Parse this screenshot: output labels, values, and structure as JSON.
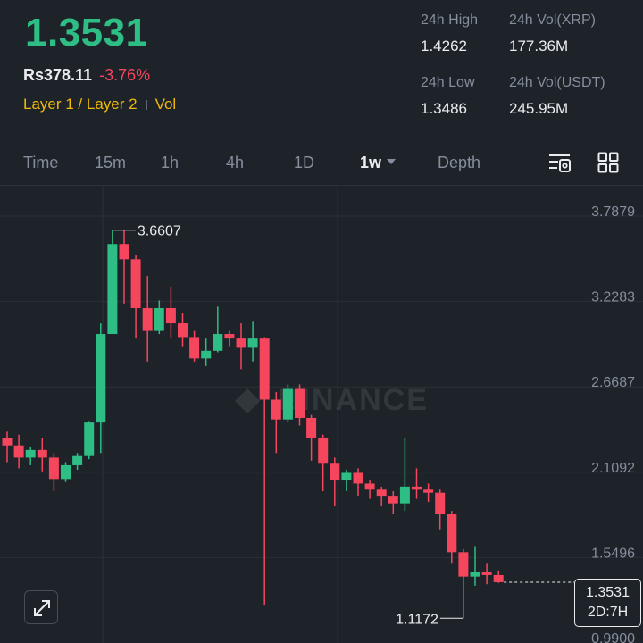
{
  "ticker": {
    "last_price": "1.3531",
    "fiat_price": "Rs378.11",
    "change_pct": "-3.76%",
    "tag_layer": "Layer 1 / Layer 2",
    "tag_vol": "Vol"
  },
  "stats": {
    "high_label": "24h High",
    "high_value": "1.4262",
    "low_label": "24h Low",
    "low_value": "1.3486",
    "vol_base_label": "24h Vol(XRP)",
    "vol_base_value": "177.36M",
    "vol_quote_label": "24h Vol(USDT)",
    "vol_quote_value": "245.95M"
  },
  "timeframes": {
    "time": "Time",
    "m15": "15m",
    "h1": "1h",
    "h4": "4h",
    "d1": "1D",
    "w1": "1w",
    "depth": "Depth"
  },
  "chart": {
    "watermark": "BINANCE",
    "price_axis": [
      "3.7879",
      "3.2283",
      "2.6687",
      "2.1092",
      "1.5496",
      "0.9900"
    ],
    "high_marker": "3.6607",
    "low_marker": "1.1172",
    "current_price": "1.3531",
    "countdown": "2D:7H",
    "colors": {
      "up": "#2ebd85",
      "down": "#f6465d"
    },
    "candles": [
      [
        2.3,
        2.25,
        2.34,
        2.14
      ],
      [
        2.25,
        2.17,
        2.32,
        2.1
      ],
      [
        2.17,
        2.22,
        2.24,
        2.12
      ],
      [
        2.22,
        2.17,
        2.3,
        2.08
      ],
      [
        2.17,
        2.03,
        2.2,
        1.95
      ],
      [
        2.03,
        2.12,
        2.14,
        2.01
      ],
      [
        2.12,
        2.18,
        2.2,
        2.09
      ],
      [
        2.18,
        2.4,
        2.41,
        2.16
      ],
      [
        2.4,
        2.98,
        3.05,
        2.2
      ],
      [
        2.98,
        3.57,
        3.66,
        2.98
      ],
      [
        3.57,
        3.47,
        3.66,
        3.18
      ],
      [
        3.47,
        3.15,
        3.5,
        2.95
      ],
      [
        3.15,
        3.0,
        3.36,
        2.8
      ],
      [
        3.0,
        3.15,
        3.2,
        2.98
      ],
      [
        3.15,
        3.05,
        3.29,
        2.95
      ],
      [
        3.05,
        2.96,
        3.12,
        2.9
      ],
      [
        2.96,
        2.82,
        3.0,
        2.8
      ],
      [
        2.82,
        2.87,
        2.95,
        2.77
      ],
      [
        2.87,
        2.98,
        3.16,
        2.86
      ],
      [
        2.98,
        2.95,
        3.0,
        2.9
      ],
      [
        2.95,
        2.89,
        3.05,
        2.75
      ],
      [
        2.89,
        2.95,
        3.06,
        2.8
      ],
      [
        2.95,
        2.55,
        2.96,
        1.2
      ],
      [
        2.55,
        2.42,
        2.6,
        2.2
      ],
      [
        2.42,
        2.62,
        2.65,
        2.4
      ],
      [
        2.62,
        2.43,
        2.65,
        2.38
      ],
      [
        2.43,
        2.3,
        2.45,
        2.15
      ],
      [
        2.3,
        2.13,
        2.32,
        1.95
      ],
      [
        2.13,
        2.02,
        2.17,
        1.85
      ],
      [
        2.02,
        2.07,
        2.09,
        1.95
      ],
      [
        2.07,
        2.0,
        2.1,
        1.92
      ],
      [
        2.0,
        1.96,
        2.02,
        1.9
      ],
      [
        1.96,
        1.92,
        1.98,
        1.85
      ],
      [
        1.92,
        1.87,
        1.95,
        1.8
      ],
      [
        1.87,
        1.98,
        2.3,
        1.82
      ],
      [
        1.98,
        1.96,
        2.1,
        1.9
      ],
      [
        1.96,
        1.94,
        2.0,
        1.88
      ],
      [
        1.94,
        1.8,
        1.96,
        1.7
      ],
      [
        1.8,
        1.55,
        1.82,
        1.48
      ],
      [
        1.55,
        1.39,
        1.57,
        1.117
      ],
      [
        1.39,
        1.42,
        1.59,
        1.33
      ],
      [
        1.42,
        1.4,
        1.48,
        1.34
      ],
      [
        1.4,
        1.3531,
        1.43,
        1.3486
      ]
    ]
  }
}
